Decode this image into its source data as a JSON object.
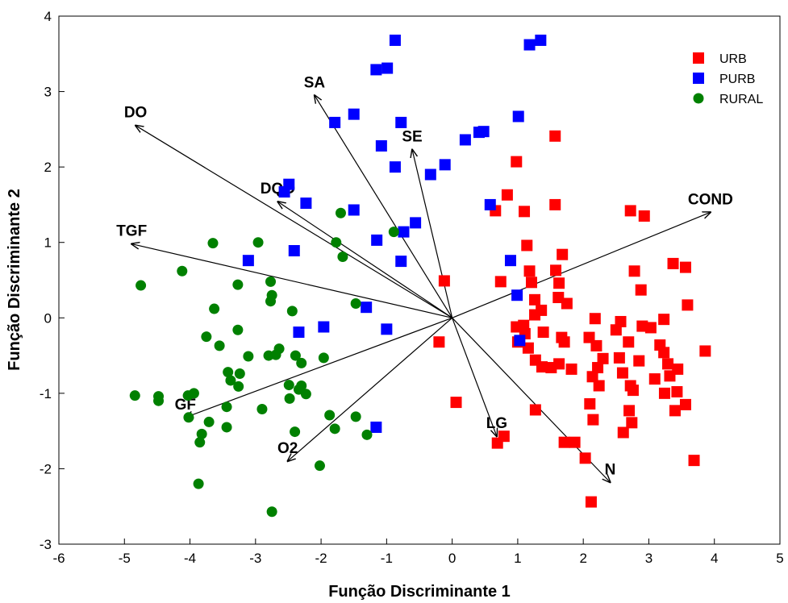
{
  "chart_data": {
    "type": "scatter",
    "x_label": "Função Discriminante 1",
    "y_label": "Função Discriminante 2",
    "xlim": [
      -6,
      5
    ],
    "xticks": [
      -6,
      -5,
      -4,
      -3,
      -2,
      -1,
      0,
      1,
      2,
      3,
      4,
      5
    ],
    "ylim": [
      -3,
      4
    ],
    "yticks": [
      -3,
      -2,
      -1,
      0,
      1,
      2,
      3,
      4
    ],
    "legend": "upper right",
    "series": [
      {
        "name": "URB",
        "color": "#ff0000",
        "marker": "square",
        "x": [
          1.57,
          0.98,
          0.84,
          0.66,
          1.1,
          1.57,
          2.72,
          2.93,
          1.14,
          1.68,
          0.74,
          1.18,
          1.21,
          1.58,
          1.63,
          2.78,
          2.88,
          3.37,
          3.56,
          3.59,
          -0.12,
          -0.2,
          0.06,
          1.26,
          1.36,
          1.26,
          1.09,
          0.98,
          1.11,
          1.0,
          1.16,
          1.39,
          1.62,
          1.75,
          1.67,
          1.71,
          1.27,
          1.37,
          1.51,
          1.63,
          1.82,
          2.18,
          2.09,
          2.2,
          2.3,
          2.22,
          2.14,
          2.24,
          2.5,
          2.57,
          2.55,
          2.6,
          2.69,
          2.72,
          2.85,
          2.9,
          3.03,
          3.23,
          3.17,
          3.09,
          3.23,
          3.29,
          3.44,
          3.32,
          3.24,
          3.43,
          3.4,
          3.56,
          3.86,
          3.69,
          2.76,
          2.7,
          2.61,
          2.74,
          2.1,
          2.15,
          1.27,
          1.71,
          2.03,
          2.12,
          0.69,
          0.79,
          1.87
        ],
        "y": [
          2.41,
          2.07,
          1.63,
          1.42,
          1.41,
          1.5,
          1.42,
          1.35,
          0.96,
          0.84,
          0.48,
          0.62,
          0.47,
          0.63,
          0.46,
          0.62,
          0.37,
          0.72,
          0.67,
          0.17,
          0.49,
          -0.32,
          -1.12,
          0.24,
          0.1,
          0.04,
          -0.1,
          -0.12,
          -0.21,
          -0.32,
          -0.4,
          -0.19,
          0.27,
          0.19,
          -0.26,
          -0.32,
          -0.56,
          -0.65,
          -0.66,
          -0.61,
          -0.68,
          -0.01,
          -0.26,
          -0.37,
          -0.54,
          -0.66,
          -0.78,
          -0.9,
          -0.16,
          -0.05,
          -0.53,
          -0.73,
          -0.32,
          -0.9,
          -0.57,
          -0.11,
          -0.13,
          -0.02,
          -0.36,
          -0.81,
          -0.46,
          -0.61,
          -0.68,
          -0.77,
          -1.0,
          -0.98,
          -1.23,
          -1.15,
          -0.44,
          -1.89,
          -0.96,
          -1.23,
          -1.52,
          -1.39,
          -1.14,
          -1.35,
          -1.22,
          -1.65,
          -1.86,
          -2.44,
          -1.66,
          -1.57,
          -1.65
        ]
      },
      {
        "name": "PURB",
        "color": "#0000ff",
        "marker": "square",
        "x": [
          -0.87,
          1.18,
          1.35,
          -1.16,
          -0.99,
          -1.5,
          -1.79,
          -0.78,
          -1.08,
          0.2,
          0.41,
          0.48,
          1.01,
          -0.87,
          -0.33,
          -0.11,
          -2.49,
          -2.56,
          -2.23,
          -1.5,
          -0.56,
          -0.74,
          0.58,
          -2.41,
          -1.15,
          -3.11,
          -0.78,
          0.89,
          0.99,
          1.03,
          -1.31,
          -2.34,
          -1.96,
          -1.0,
          -1.16
        ],
        "y": [
          3.68,
          3.62,
          3.68,
          3.29,
          3.31,
          2.7,
          2.59,
          2.59,
          2.28,
          2.36,
          2.46,
          2.47,
          2.67,
          2.0,
          1.9,
          2.03,
          1.77,
          1.67,
          1.52,
          1.43,
          1.26,
          1.14,
          1.5,
          0.89,
          1.03,
          0.76,
          0.75,
          0.76,
          0.3,
          -0.3,
          0.14,
          -0.19,
          -0.12,
          -0.15,
          -1.45
        ]
      },
      {
        "name": "RURAL",
        "color": "#008000",
        "marker": "circle",
        "x": [
          -1.7,
          -0.89,
          -1.77,
          -1.67,
          -3.65,
          -2.96,
          -4.12,
          -4.75,
          -3.27,
          -2.77,
          -2.75,
          -2.77,
          -3.63,
          -1.47,
          -2.44,
          -3.75,
          -3.27,
          -3.55,
          -2.64,
          -2.69,
          -3.11,
          -2.8,
          -2.39,
          -1.96,
          -2.3,
          -3.42,
          -3.24,
          -3.38,
          -3.26,
          -2.49,
          -2.3,
          -2.23,
          -2.34,
          -4.84,
          -4.48,
          -4.48,
          -4.03,
          -3.94,
          -2.48,
          -3.44,
          -2.9,
          -1.87,
          -1.47,
          -3.44,
          -3.71,
          -3.82,
          -3.85,
          -2.4,
          -1.79,
          -1.3,
          -2.02,
          -3.87,
          -2.75,
          -4.02
        ],
        "y": [
          1.39,
          1.14,
          1.0,
          0.81,
          0.99,
          1.0,
          0.62,
          0.43,
          0.44,
          0.48,
          0.3,
          0.22,
          0.12,
          0.19,
          0.09,
          -0.25,
          -0.16,
          -0.37,
          -0.41,
          -0.49,
          -0.51,
          -0.5,
          -0.5,
          -0.53,
          -0.6,
          -0.72,
          -0.74,
          -0.83,
          -0.91,
          -0.89,
          -0.9,
          -1.01,
          -0.95,
          -1.03,
          -1.04,
          -1.1,
          -1.03,
          -1.0,
          -1.07,
          -1.18,
          -1.21,
          -1.29,
          -1.31,
          -1.45,
          -1.38,
          -1.54,
          -1.65,
          -1.51,
          -1.47,
          -1.55,
          -1.96,
          -2.2,
          -2.57,
          -1.32
        ]
      }
    ],
    "vectors": [
      {
        "name": "DO",
        "x": -4.83,
        "y": 2.55
      },
      {
        "name": "SA",
        "x": -2.1,
        "y": 2.95
      },
      {
        "name": "SE",
        "x": -0.61,
        "y": 2.23
      },
      {
        "name": "DQO",
        "x": -2.66,
        "y": 1.54
      },
      {
        "name": "TGF",
        "x": -4.89,
        "y": 0.98
      },
      {
        "name": "COND",
        "x": 3.94,
        "y": 1.4
      },
      {
        "name": "GF",
        "x": -4.07,
        "y": -1.32
      },
      {
        "name": "O2",
        "x": -2.51,
        "y": -1.9
      },
      {
        "name": "LG",
        "x": 0.68,
        "y": -1.57
      },
      {
        "name": "N",
        "x": 2.41,
        "y": -2.18
      }
    ]
  }
}
